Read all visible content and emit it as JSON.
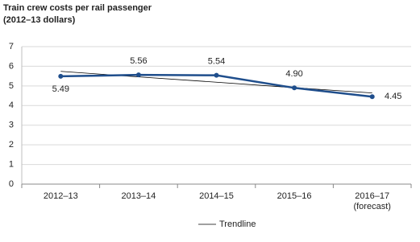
{
  "chart_data": {
    "type": "line",
    "title": "Train crew costs per rail passenger",
    "subtitle": "(2012–13 dollars)",
    "categories": [
      "2012–13",
      "2013–14",
      "2014–15",
      "2015–16",
      "2016–17 (forecast)"
    ],
    "series": [
      {
        "color": "#1f4e8c",
        "values": [
          5.49,
          5.56,
          5.54,
          4.9,
          4.45
        ],
        "value_labels": [
          "5.49",
          "5.56",
          "5.54",
          "4.90",
          "4.45"
        ]
      },
      {
        "name": "Trendline",
        "color": "#000000",
        "values": [
          5.74,
          5.46,
          5.19,
          4.91,
          4.64
        ]
      }
    ],
    "ylim": [
      0,
      7
    ],
    "yticks": [
      0,
      1,
      2,
      3,
      4,
      5,
      6,
      7
    ],
    "grid": true,
    "legend": "bottom"
  }
}
